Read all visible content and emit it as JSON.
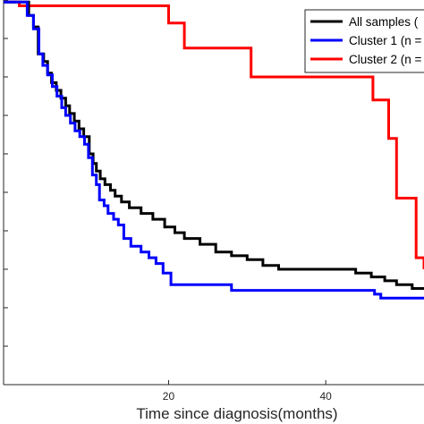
{
  "chart_data": {
    "type": "line",
    "step": true,
    "xlabel": "Time since diagnosis(months)",
    "ylabel": "",
    "x_ticks": [
      20,
      40
    ],
    "xlim": [
      -1,
      52.5
    ],
    "ylim": [
      0,
      1
    ],
    "grid": false,
    "legend_position": "top-right",
    "series": [
      {
        "name": "All samples (",
        "color": "#000000",
        "x": [
          -1,
          2.2,
          2.8,
          3.4,
          4.1,
          4.6,
          5.1,
          5.7,
          6.3,
          6.9,
          7.4,
          8.0,
          8.6,
          9.2,
          9.9,
          10.4,
          10.8,
          11.3,
          11.9,
          12.6,
          13.2,
          14.0,
          15.0,
          16.5,
          18.0,
          19.5,
          20.8,
          22.0,
          24.0,
          26.0,
          28.0,
          30.0,
          32.0,
          34.0,
          43.8,
          45.8,
          47.5,
          49.0,
          51.0,
          52.5
        ],
        "y": [
          0.995,
          0.96,
          0.93,
          0.86,
          0.84,
          0.81,
          0.785,
          0.765,
          0.745,
          0.725,
          0.705,
          0.685,
          0.665,
          0.645,
          0.6,
          0.575,
          0.555,
          0.535,
          0.52,
          0.505,
          0.49,
          0.475,
          0.46,
          0.445,
          0.43,
          0.41,
          0.395,
          0.38,
          0.365,
          0.345,
          0.335,
          0.325,
          0.31,
          0.3,
          0.29,
          0.28,
          0.27,
          0.26,
          0.25,
          0.25
        ]
      },
      {
        "name": "Cluster 1 (n =",
        "color": "#0000ff",
        "x": [
          -1,
          2.0,
          2.8,
          3.5,
          4.0,
          4.6,
          5.2,
          5.8,
          6.4,
          6.9,
          7.5,
          8.1,
          8.7,
          9.3,
          9.8,
          10.3,
          10.8,
          11.2,
          11.8,
          12.3,
          13.0,
          13.6,
          14.3,
          15.2,
          16.5,
          17.5,
          18.4,
          19.3,
          20.3,
          28.0,
          46.2,
          47.0,
          48.5,
          52.5
        ],
        "y": [
          0.995,
          0.96,
          0.925,
          0.86,
          0.83,
          0.805,
          0.775,
          0.75,
          0.72,
          0.7,
          0.68,
          0.66,
          0.645,
          0.625,
          0.59,
          0.545,
          0.52,
          0.48,
          0.465,
          0.445,
          0.43,
          0.415,
          0.38,
          0.36,
          0.345,
          0.33,
          0.315,
          0.29,
          0.26,
          0.245,
          0.235,
          0.225,
          0.225,
          0.225
        ]
      },
      {
        "name": "Cluster 2 (n =",
        "color": "#ff0000",
        "x": [
          -1,
          1.0,
          7.0,
          20.0,
          22.0,
          30.5,
          45.0,
          46.0,
          48.0,
          49.0,
          51.5,
          52.5
        ],
        "y": [
          0.995,
          0.985,
          0.985,
          0.94,
          0.875,
          0.8,
          0.8,
          0.74,
          0.64,
          0.485,
          0.33,
          0.3
        ]
      }
    ]
  }
}
